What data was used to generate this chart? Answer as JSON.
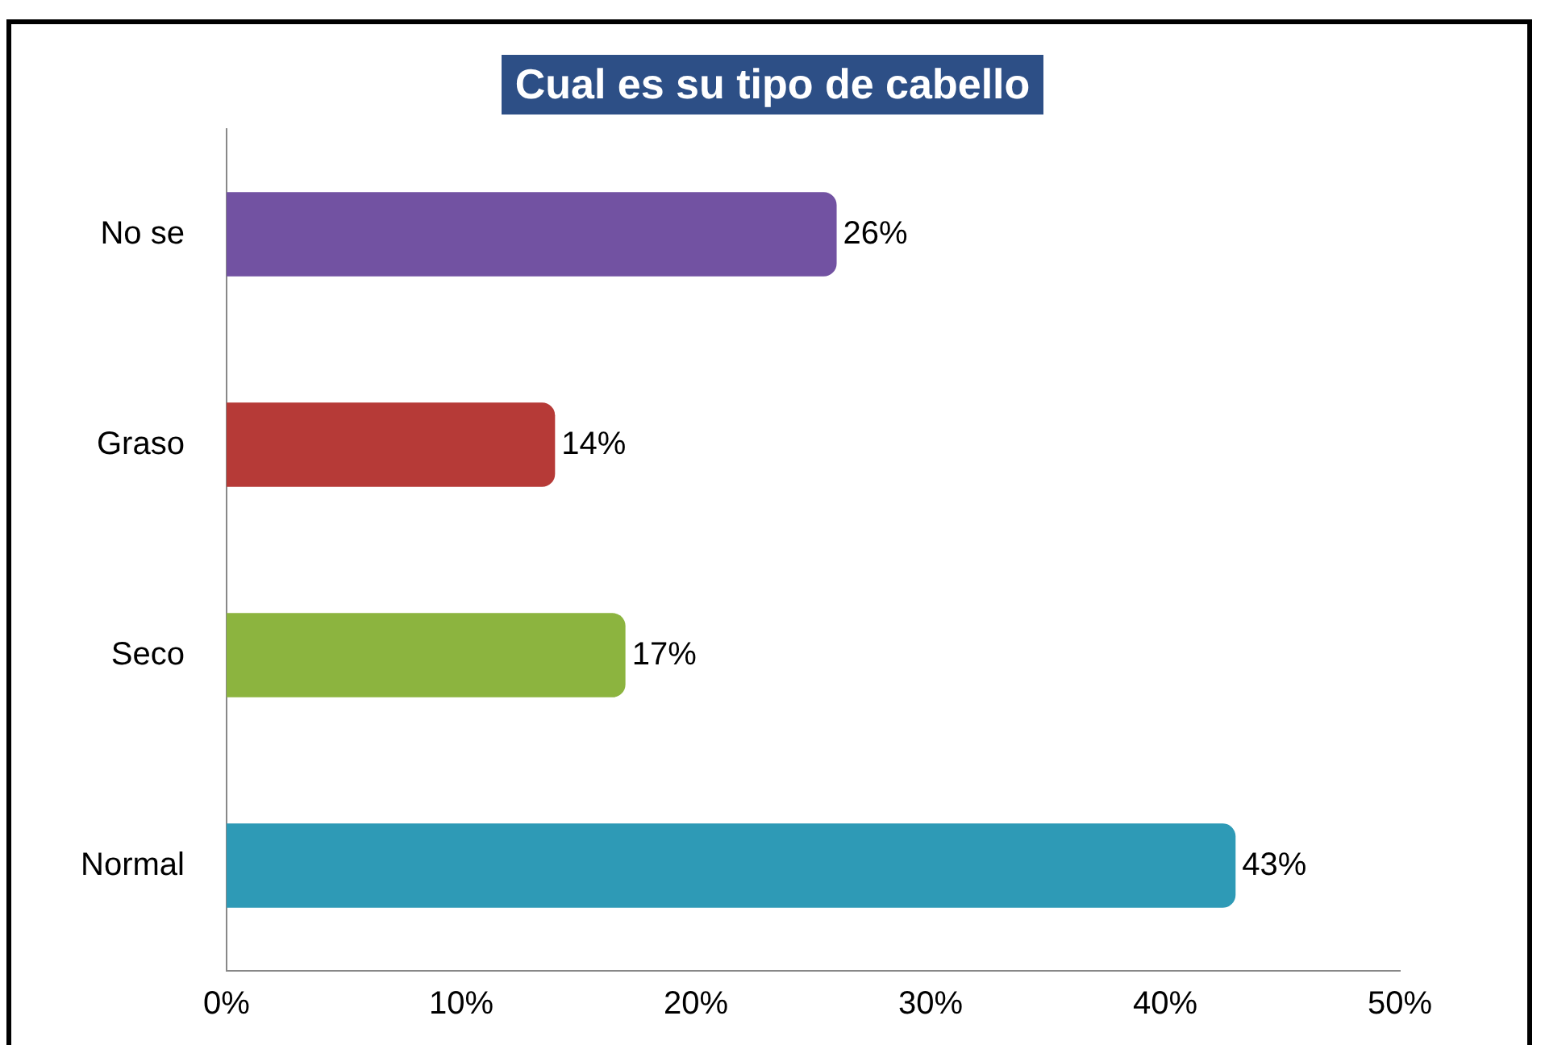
{
  "chart_data": {
    "type": "bar",
    "orientation": "horizontal",
    "title": "Cual es su tipo de cabello",
    "categories": [
      "No se",
      "Graso",
      "Seco",
      "Normal"
    ],
    "values": [
      26,
      14,
      17,
      43
    ],
    "colors": [
      "#7252a2",
      "#b63a37",
      "#8cb43f",
      "#2e9ab6"
    ],
    "value_labels": [
      "26%",
      "14%",
      "17%",
      "43%"
    ],
    "xlim": [
      0,
      50
    ],
    "xticks": [
      {
        "value": 0,
        "label": "0%"
      },
      {
        "value": 10,
        "label": "10%"
      },
      {
        "value": 20,
        "label": "20%"
      },
      {
        "value": 30,
        "label": "30%"
      },
      {
        "value": 40,
        "label": "40%"
      },
      {
        "value": 50,
        "label": "50%"
      }
    ],
    "grid": false,
    "legend": false
  }
}
